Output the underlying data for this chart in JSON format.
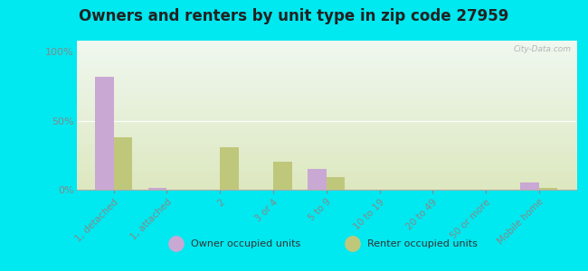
{
  "title": "Owners and renters by unit type in zip code 27959",
  "categories": [
    "1, detached",
    "1, attached",
    "2",
    "3 or 4",
    "5 to 9",
    "10 to 19",
    "20 to 49",
    "50 or more",
    "Mobile home"
  ],
  "owner_values": [
    82,
    1,
    0,
    0,
    15,
    0,
    0,
    0,
    5
  ],
  "renter_values": [
    38,
    0,
    31,
    20,
    9,
    0,
    0,
    0,
    1
  ],
  "owner_color": "#c9a8d4",
  "renter_color": "#bfc87a",
  "background_outer": "#00e8f0",
  "yticks": [
    0,
    50,
    100
  ],
  "ylim": [
    0,
    108
  ],
  "bar_width": 0.35,
  "legend_owner": "Owner occupied units",
  "legend_renter": "Renter occupied units",
  "watermark": "City-Data.com",
  "title_fontsize": 12,
  "plot_bg_top": "#f0f8f0",
  "plot_bg_bottom": "#dde8c0"
}
